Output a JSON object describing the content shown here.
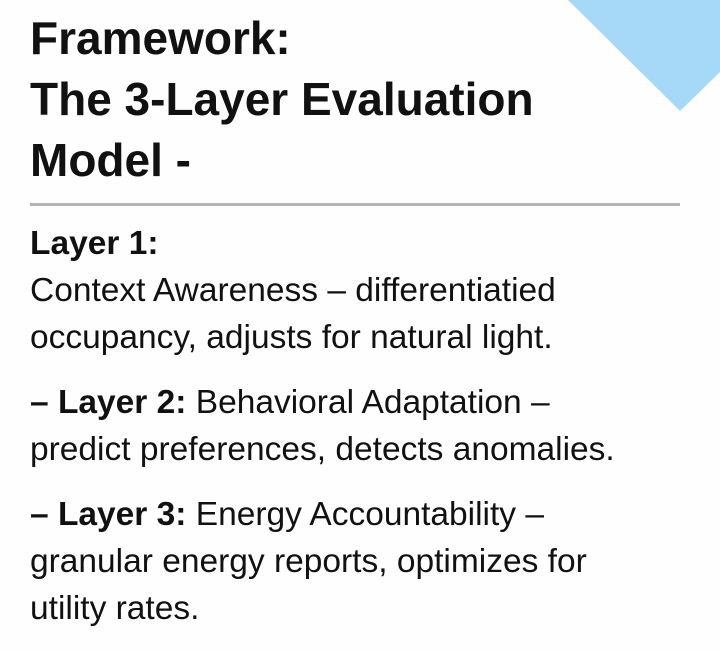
{
  "accent_color": "#a6d8f7",
  "title": [
    "Framework:",
    "The 3-Layer Evaluation",
    "Model -"
  ],
  "layers": [
    {
      "label": "Layer 1:",
      "text_lines": [
        "Context Awareness – differentiatied",
        "occupancy, adjusts for natural light."
      ]
    },
    {
      "label": "– Layer 2:",
      "text_first": " Behavioral Adaptation –",
      "text_rest": "predict preferences, detects anomalies."
    },
    {
      "label": "– Layer 3:",
      "text_first": " Energy Accountability –",
      "text_rest": "granular energy reports, optimizes for utility rates."
    }
  ]
}
